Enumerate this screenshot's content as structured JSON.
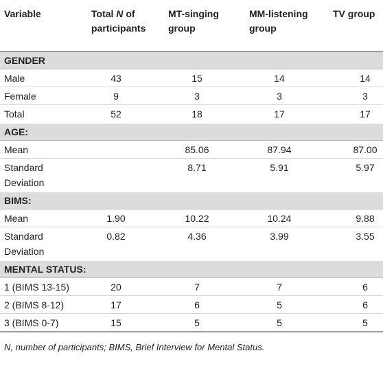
{
  "table": {
    "header": [
      "Variable",
      {
        "pre": "Total",
        "em": "N",
        "post": "of participants"
      },
      "MT-singing group",
      "MM-listening group",
      "TV group"
    ],
    "sections": [
      {
        "title": "GENDER",
        "rows": [
          [
            "Male",
            "43",
            "15",
            "14",
            "14"
          ],
          [
            "Female",
            "9",
            "3",
            "3",
            "3"
          ],
          [
            "Total",
            "52",
            "18",
            "17",
            "17"
          ]
        ]
      },
      {
        "title": "AGE:",
        "rows": [
          [
            "Mean",
            null,
            "85.06",
            "87.94",
            "87.00"
          ],
          [
            "Standard Deviation",
            null,
            "8.71",
            "5.91",
            "5.97"
          ]
        ]
      },
      {
        "title": "BIMS:",
        "rows": [
          [
            "Mean",
            "1.90",
            "10.22",
            "10.24",
            "9.88"
          ],
          [
            "Standard Deviation",
            "0.82",
            "4.36",
            "3.99",
            "3.55"
          ]
        ]
      },
      {
        "title": "MENTAL STATUS:",
        "rows": [
          [
            "1 (BIMS 13-15)",
            "20",
            "7",
            "7",
            "6"
          ],
          [
            "2 (BIMS 8-12)",
            "17",
            "6",
            "5",
            "6"
          ],
          [
            "3 (BIMS 0-7)",
            "15",
            "5",
            "5",
            "5"
          ]
        ]
      }
    ]
  },
  "footnote": "N, number of participants; BIMS, Brief Interview for Mental Status."
}
